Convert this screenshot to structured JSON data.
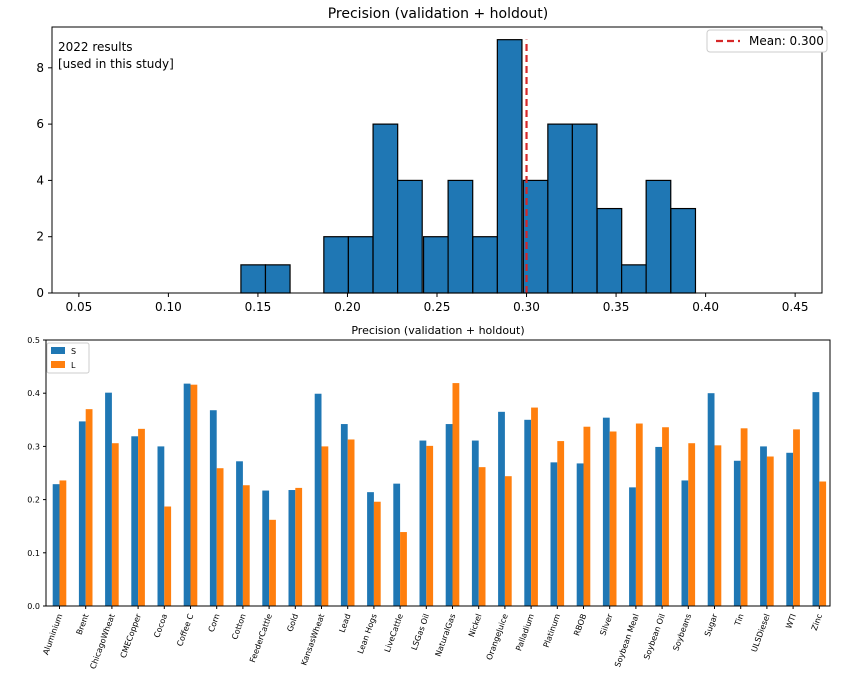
{
  "colors": {
    "hist_bar": "#1f77b4",
    "series_s": "#1f77b4",
    "series_l": "#ff7f0e",
    "mean_line": "#d62728"
  },
  "chart_data": [
    {
      "type": "bar",
      "subtype": "histogram",
      "title": "Precision (validation + holdout)",
      "annotation_lines": [
        "2022 results",
        "[used in this study]"
      ],
      "xlabel": "",
      "ylabel": "",
      "xlim": [
        0.035,
        0.465
      ],
      "ylim": [
        0,
        9.45
      ],
      "xticks": [
        "0.05",
        "0.10",
        "0.15",
        "0.20",
        "0.25",
        "0.30",
        "0.35",
        "0.40",
        "0.45"
      ],
      "yticks": [
        "0",
        "2",
        "4",
        "6",
        "8"
      ],
      "bin_width": 0.01374,
      "bins": [
        {
          "start": 0.1405,
          "count": 1
        },
        {
          "start": 0.1542,
          "count": 1
        },
        {
          "start": 0.1868,
          "count": 2
        },
        {
          "start": 0.2005,
          "count": 2
        },
        {
          "start": 0.2143,
          "count": 6
        },
        {
          "start": 0.228,
          "count": 4
        },
        {
          "start": 0.2425,
          "count": 2
        },
        {
          "start": 0.2562,
          "count": 4
        },
        {
          "start": 0.27,
          "count": 2
        },
        {
          "start": 0.2837,
          "count": 9
        },
        {
          "start": 0.2982,
          "count": 4
        },
        {
          "start": 0.3119,
          "count": 6
        },
        {
          "start": 0.3256,
          "count": 6
        },
        {
          "start": 0.3394,
          "count": 3
        },
        {
          "start": 0.3531,
          "count": 1
        },
        {
          "start": 0.3668,
          "count": 4
        },
        {
          "start": 0.3806,
          "count": 3
        }
      ],
      "mean": 0.3,
      "legend": {
        "label": "Mean: 0.300",
        "placement": "top-right"
      }
    },
    {
      "type": "bar",
      "title": "Precision (validation + holdout)",
      "xlabel": "",
      "ylabel": "",
      "ylim": [
        0,
        0.5
      ],
      "yticks": [
        "0.0",
        "0.1",
        "0.2",
        "0.3",
        "0.4",
        "0.5"
      ],
      "legend": {
        "placement": "top-left"
      },
      "categories": [
        "Aluminium",
        "Brent",
        "ChicagoWheat",
        "CMECopper",
        "Cocoa",
        "Coffee C",
        "Corn",
        "Cotton",
        "FeederCattle",
        "Gold",
        "KansasWheat",
        "Lead",
        "Lean Hogs",
        "LiveCattle",
        "LSGas Oil",
        "NaturalGas",
        "Nickel",
        "OrangeJuice",
        "Palladium",
        "Platinum",
        "RBOB",
        "Silver",
        "Soybean Meal",
        "Soybean Oil",
        "Soybeans",
        "Sugar",
        "Tin",
        "ULSDiesel",
        "WTI",
        "Zinc"
      ],
      "series": [
        {
          "name": "S",
          "values": [
            0.229,
            0.347,
            0.401,
            0.319,
            0.3,
            0.418,
            0.368,
            0.272,
            0.217,
            0.218,
            0.399,
            0.342,
            0.214,
            0.23,
            0.311,
            0.342,
            0.311,
            0.365,
            0.35,
            0.27,
            0.268,
            0.354,
            0.223,
            0.299,
            0.236,
            0.4,
            0.273,
            0.3,
            0.288,
            0.402
          ]
        },
        {
          "name": "L",
          "values": [
            0.236,
            0.37,
            0.306,
            0.333,
            0.187,
            0.416,
            0.259,
            0.227,
            0.162,
            0.222,
            0.3,
            0.313,
            0.196,
            0.139,
            0.301,
            0.419,
            0.261,
            0.244,
            0.373,
            0.31,
            0.337,
            0.328,
            0.343,
            0.336,
            0.306,
            0.302,
            0.334,
            0.281,
            0.332,
            0.234
          ]
        }
      ]
    }
  ]
}
